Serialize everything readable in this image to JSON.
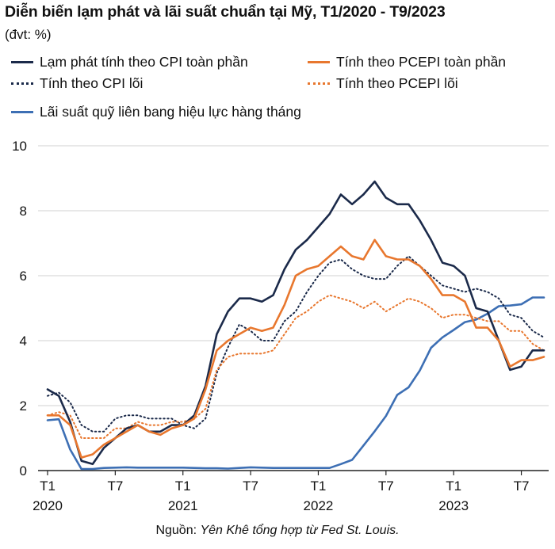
{
  "header": {
    "title": "Diễn biến lạm phát và lãi suất chuẩn tại Mỹ, T1/2020 - T9/2023",
    "unit": "(đvt: %)"
  },
  "source": {
    "prefix": "Nguồn: ",
    "text": "Yên Khê tổng hợp từ Fed St. Louis."
  },
  "colors": {
    "navy": "#1b2a4a",
    "orange": "#e8772e",
    "blue": "#3d6fb4",
    "grid": "#d0d0d0",
    "axis": "#222222"
  },
  "chart_data": {
    "type": "line",
    "ylim": [
      0,
      10
    ],
    "yticks": [
      0,
      2,
      4,
      6,
      8,
      10
    ],
    "grid": true,
    "legend_position": "top",
    "x_tick_labels": [
      {
        "top": "T1",
        "bottom": "2020",
        "index": 0
      },
      {
        "top": "T7",
        "bottom": "",
        "index": 6
      },
      {
        "top": "T1",
        "bottom": "2021",
        "index": 12
      },
      {
        "top": "T7",
        "bottom": "",
        "index": 18
      },
      {
        "top": "T1",
        "bottom": "2022",
        "index": 24
      },
      {
        "top": "T7",
        "bottom": "",
        "index": 30
      },
      {
        "top": "T1",
        "bottom": "2023",
        "index": 36
      },
      {
        "top": "T7",
        "bottom": "",
        "index": 42
      }
    ],
    "n_months": 45,
    "series": [
      {
        "name": "Lạm phát tính theo CPI toàn phần",
        "color": "#1b2a4a",
        "style": "solid",
        "values": [
          2.5,
          2.3,
          1.5,
          0.3,
          0.2,
          0.7,
          1.0,
          1.3,
          1.4,
          1.2,
          1.2,
          1.4,
          1.4,
          1.7,
          2.6,
          4.2,
          4.9,
          5.3,
          5.3,
          5.2,
          5.4,
          6.2,
          6.8,
          7.1,
          7.5,
          7.9,
          8.5,
          8.2,
          8.5,
          8.9,
          8.4,
          8.2,
          8.2,
          7.7,
          7.1,
          6.4,
          6.3,
          6.0,
          5.0,
          4.9,
          4.0,
          3.1,
          3.2,
          3.7,
          3.7
        ]
      },
      {
        "name": "Tính theo CPI lõi",
        "color": "#1b2a4a",
        "style": "dotted",
        "values": [
          2.3,
          2.4,
          2.1,
          1.4,
          1.2,
          1.2,
          1.6,
          1.7,
          1.7,
          1.6,
          1.6,
          1.6,
          1.4,
          1.3,
          1.6,
          3.0,
          3.8,
          4.5,
          4.3,
          4.0,
          4.0,
          4.6,
          4.9,
          5.5,
          6.0,
          6.4,
          6.5,
          6.2,
          6.0,
          5.9,
          5.9,
          6.3,
          6.6,
          6.3,
          6.0,
          5.7,
          5.6,
          5.5,
          5.6,
          5.5,
          5.3,
          4.8,
          4.7,
          4.3,
          4.1
        ]
      },
      {
        "name": "Tính theo PCEPI toàn phần",
        "color": "#e8772e",
        "style": "solid",
        "values": [
          1.7,
          1.7,
          1.4,
          0.4,
          0.5,
          0.8,
          1.0,
          1.2,
          1.4,
          1.2,
          1.1,
          1.3,
          1.4,
          1.6,
          2.5,
          3.7,
          4.0,
          4.2,
          4.4,
          4.3,
          4.4,
          5.1,
          6.0,
          6.2,
          6.3,
          6.6,
          6.9,
          6.6,
          6.5,
          7.1,
          6.6,
          6.5,
          6.5,
          6.3,
          5.9,
          5.4,
          5.4,
          5.2,
          4.4,
          4.4,
          4.0,
          3.2,
          3.4,
          3.4,
          3.5
        ]
      },
      {
        "name": "Tính theo PCEPI lõi",
        "color": "#e8772e",
        "style": "dotted",
        "values": [
          1.7,
          1.8,
          1.7,
          1.0,
          1.0,
          1.0,
          1.3,
          1.3,
          1.5,
          1.4,
          1.4,
          1.5,
          1.5,
          1.6,
          1.9,
          3.1,
          3.5,
          3.6,
          3.6,
          3.6,
          3.7,
          4.2,
          4.7,
          4.9,
          5.2,
          5.4,
          5.3,
          5.2,
          5.0,
          5.2,
          4.9,
          5.1,
          5.3,
          5.2,
          5.0,
          4.7,
          4.8,
          4.8,
          4.7,
          4.6,
          4.6,
          4.3,
          4.3,
          3.9,
          3.7
        ]
      },
      {
        "name": "Lãi suất quỹ liên bang hiệu lực hàng tháng",
        "color": "#3d6fb4",
        "style": "solid",
        "values": [
          1.55,
          1.58,
          0.65,
          0.05,
          0.05,
          0.08,
          0.09,
          0.1,
          0.09,
          0.09,
          0.09,
          0.09,
          0.09,
          0.08,
          0.07,
          0.07,
          0.06,
          0.08,
          0.1,
          0.09,
          0.08,
          0.08,
          0.08,
          0.08,
          0.08,
          0.08,
          0.2,
          0.33,
          0.77,
          1.21,
          1.68,
          2.33,
          2.56,
          3.08,
          3.78,
          4.1,
          4.33,
          4.57,
          4.65,
          4.83,
          5.06,
          5.08,
          5.12,
          5.33,
          5.33
        ]
      }
    ]
  }
}
